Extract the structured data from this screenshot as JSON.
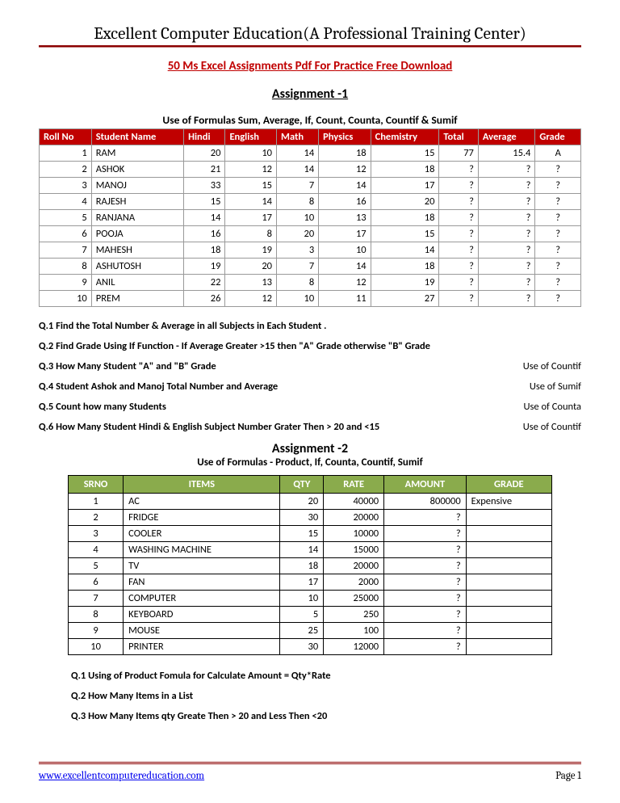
{
  "header": {
    "title": "Excellent Computer Education(A Professional Training Center)",
    "subtitle": "50 Ms Excel Assignments Pdf For Practice Free Download"
  },
  "assignment1": {
    "title": "Assignment -1",
    "caption": "Use of Formulas Sum, Average, If, Count, Counta, Countif & Sumif",
    "header_bg": "#c00000",
    "header_fg": "#ffffff",
    "columns": [
      "Roll No",
      "Student Name",
      "Hindi",
      "English",
      "Math",
      "Physics",
      "Chemistry",
      "Total",
      "Average",
      "Grade"
    ],
    "rows": [
      [
        "1",
        "RAM",
        "20",
        "10",
        "14",
        "18",
        "15",
        "77",
        "15.4",
        "A"
      ],
      [
        "2",
        "ASHOK",
        "21",
        "12",
        "14",
        "12",
        "18",
        "?",
        "?",
        "?"
      ],
      [
        "3",
        "MANOJ",
        "33",
        "15",
        "7",
        "14",
        "17",
        "?",
        "?",
        "?"
      ],
      [
        "4",
        "RAJESH",
        "15",
        "14",
        "8",
        "16",
        "20",
        "?",
        "?",
        "?"
      ],
      [
        "5",
        "RANJANA",
        "14",
        "17",
        "10",
        "13",
        "18",
        "?",
        "?",
        "?"
      ],
      [
        "6",
        "POOJA",
        "16",
        "8",
        "20",
        "17",
        "15",
        "?",
        "?",
        "?"
      ],
      [
        "7",
        "MAHESH",
        "18",
        "19",
        "3",
        "10",
        "14",
        "?",
        "?",
        "?"
      ],
      [
        "8",
        "ASHUTOSH",
        "19",
        "20",
        "7",
        "14",
        "18",
        "?",
        "?",
        "?"
      ],
      [
        "9",
        "ANIL",
        "22",
        "13",
        "8",
        "12",
        "19",
        "?",
        "?",
        "?"
      ],
      [
        "10",
        "PREM",
        "26",
        "12",
        "10",
        "11",
        "27",
        "?",
        "?",
        "?"
      ]
    ],
    "col_align": [
      "num",
      "",
      "num",
      "num",
      "num",
      "num",
      "num",
      "num",
      "num",
      "ctr"
    ],
    "questions": [
      {
        "q": "Q.1 Find the Total Number & Average in all Subjects in Each Student .",
        "hint": ""
      },
      {
        "q": "Q.2 Find Grade Using If Function - If Average Greater  >15 then \"A\" Grade otherwise \"B\" Grade",
        "hint": ""
      },
      {
        "q": "Q.3 How Many Student \"A\" and \"B\" Grade",
        "hint": "Use of Countif"
      },
      {
        "q": "Q.4 Student Ashok and Manoj Total Number and Average",
        "hint": "Use of Sumif"
      },
      {
        "q": "Q.5 Count how many Students",
        "hint": "Use of Counta"
      },
      {
        "q": "Q.6 How Many Student Hindi & English Subject Number Grater Then > 20 and <15",
        "hint": "Use of Countif"
      }
    ]
  },
  "assignment2": {
    "title": "Assignment -2",
    "caption": "Use of Formulas - Product, If, Counta, Countif, Sumif",
    "header_bg": "#8aab4c",
    "header_fg": "#ffffff",
    "columns": [
      "SRNO",
      "ITEMS",
      "QTY",
      "RATE",
      "AMOUNT",
      "GRADE"
    ],
    "rows": [
      [
        "1",
        "AC",
        "20",
        "40000",
        "800000",
        "Expensive"
      ],
      [
        "2",
        "FRIDGE",
        "30",
        "20000",
        "?",
        ""
      ],
      [
        "3",
        "COOLER",
        "15",
        "10000",
        "?",
        ""
      ],
      [
        "4",
        "WASHING MACHINE",
        "14",
        "15000",
        "?",
        ""
      ],
      [
        "5",
        "TV",
        "18",
        "20000",
        "?",
        ""
      ],
      [
        "6",
        "FAN",
        "17",
        "2000",
        "?",
        ""
      ],
      [
        "7",
        "COMPUTER",
        "10",
        "25000",
        "?",
        ""
      ],
      [
        "8",
        "KEYBOARD",
        "5",
        "250",
        "?",
        ""
      ],
      [
        "9",
        "MOUSE",
        "25",
        "100",
        "?",
        ""
      ],
      [
        "10",
        "PRINTER",
        "30",
        "12000",
        "?",
        ""
      ]
    ],
    "col_align": [
      "ctr",
      "",
      "num",
      "num",
      "num",
      ""
    ],
    "questions": [
      "Q.1 Using of Product Fomula for Calculate Amount = Qty*Rate",
      "Q.2 How Many Items in a List",
      "Q.3 How Many Items qty Greate Then > 20 and Less Then <20"
    ]
  },
  "footer": {
    "url_text": "www.excellentcomputereducation.com",
    "page": "Page 1"
  }
}
